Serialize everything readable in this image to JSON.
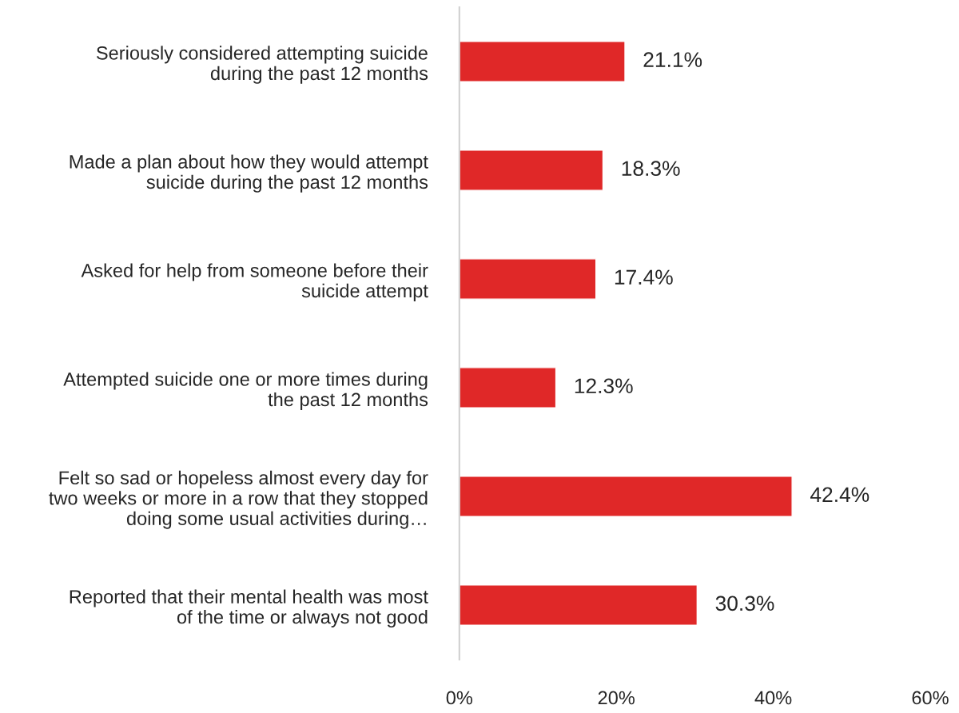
{
  "chart_data": {
    "type": "bar",
    "orientation": "horizontal",
    "categories": [
      "Seriously considered attempting suicide during the past 12 months",
      "Made a plan about how they would attempt suicide during the past 12 months",
      "Asked for help from someone before their suicide attempt",
      "Attempted suicide one or more times during the past 12 months",
      "Felt so sad or hopeless almost every day for two weeks or more in a row that they stopped doing some usual activities during…",
      "Reported that their mental health was most of the time or always not good"
    ],
    "values": [
      21.1,
      18.3,
      17.4,
      12.3,
      42.4,
      30.3
    ],
    "value_labels": [
      "21.1%",
      "18.3%",
      "17.4%",
      "12.3%",
      "42.4%",
      "30.3%"
    ],
    "color": "#e02828",
    "xlim": [
      0,
      60
    ],
    "xticks": [
      {
        "value": 0,
        "label": "0%"
      },
      {
        "value": 20,
        "label": "20%"
      },
      {
        "value": 40,
        "label": "40%"
      },
      {
        "value": 60,
        "label": "60%"
      }
    ],
    "grid": false,
    "legend": false
  }
}
